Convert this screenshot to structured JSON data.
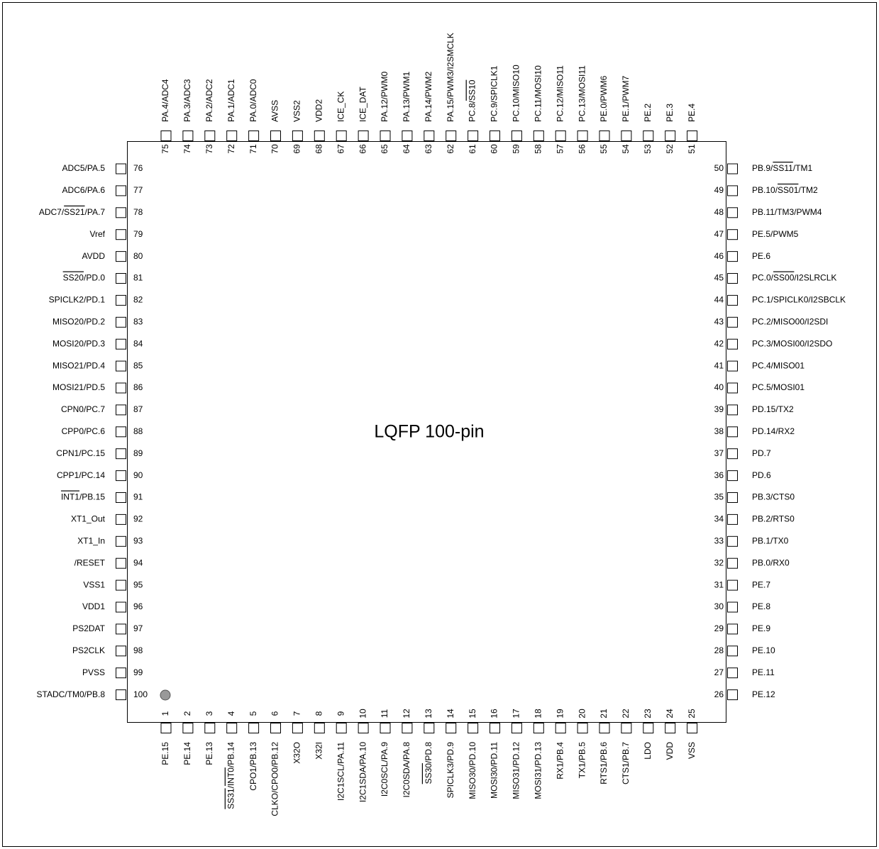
{
  "title": "LQFP 100-pin",
  "sides": {
    "top": [
      {
        "num": 75,
        "label": "PA.4/ADC4"
      },
      {
        "num": 74,
        "label": "PA.3/ADC3"
      },
      {
        "num": 73,
        "label": "PA.2/ADC2"
      },
      {
        "num": 72,
        "label": "PA.1/ADC1"
      },
      {
        "num": 71,
        "label": "PA.0/ADC0"
      },
      {
        "num": 70,
        "label": "AVSS"
      },
      {
        "num": 69,
        "label": "VSS2"
      },
      {
        "num": 68,
        "label": "VDD2"
      },
      {
        "num": 67,
        "label": "ICE_CK"
      },
      {
        "num": 66,
        "label": "ICE_DAT"
      },
      {
        "num": 65,
        "label": "PA.12/PWM0"
      },
      {
        "num": 64,
        "label": "PA.13/PWM1"
      },
      {
        "num": 63,
        "label": "PA.14/PWM2"
      },
      {
        "num": 62,
        "label": "PA.15/PWM3/I2SMCLK"
      },
      {
        "num": 61,
        "label": [
          "PC.8/",
          {
            "text": "SS10",
            "overline": true
          }
        ]
      },
      {
        "num": 60,
        "label": "PC.9/SPICLK1"
      },
      {
        "num": 59,
        "label": "PC.10/MISO10"
      },
      {
        "num": 58,
        "label": "PC.11/MOSI10"
      },
      {
        "num": 57,
        "label": "PC.12/MISO11"
      },
      {
        "num": 56,
        "label": "PC.13/MOSI11"
      },
      {
        "num": 55,
        "label": "PE.0/PWM6"
      },
      {
        "num": 54,
        "label": "PE.1/PWM7"
      },
      {
        "num": 53,
        "label": "PE.2"
      },
      {
        "num": 52,
        "label": "PE.3"
      },
      {
        "num": 51,
        "label": "PE.4"
      }
    ],
    "left": [
      {
        "num": 76,
        "label": "ADC5/PA.5"
      },
      {
        "num": 77,
        "label": "ADC6/PA.6"
      },
      {
        "num": 78,
        "label": [
          "ADC7/",
          {
            "text": "SS21",
            "overline": true
          },
          "/PA.7"
        ]
      },
      {
        "num": 79,
        "label": "Vref"
      },
      {
        "num": 80,
        "label": "AVDD"
      },
      {
        "num": 81,
        "label": [
          {
            "text": "SS20",
            "overline": true
          },
          "/PD.0"
        ]
      },
      {
        "num": 82,
        "label": "SPICLK2/PD.1"
      },
      {
        "num": 83,
        "label": "MISO20/PD.2"
      },
      {
        "num": 84,
        "label": "MOSI20/PD.3"
      },
      {
        "num": 85,
        "label": "MISO21/PD.4"
      },
      {
        "num": 86,
        "label": "MOSI21/PD.5"
      },
      {
        "num": 87,
        "label": "CPN0/PC.7"
      },
      {
        "num": 88,
        "label": "CPP0/PC.6"
      },
      {
        "num": 89,
        "label": "CPN1/PC.15"
      },
      {
        "num": 90,
        "label": "CPP1/PC.14"
      },
      {
        "num": 91,
        "label": [
          {
            "text": "INT1",
            "overline": true
          },
          "/PB.15"
        ]
      },
      {
        "num": 92,
        "label": "XT1_Out"
      },
      {
        "num": 93,
        "label": "XT1_In"
      },
      {
        "num": 94,
        "label": "/RESET"
      },
      {
        "num": 95,
        "label": "VSS1"
      },
      {
        "num": 96,
        "label": "VDD1"
      },
      {
        "num": 97,
        "label": "PS2DAT"
      },
      {
        "num": 98,
        "label": "PS2CLK"
      },
      {
        "num": 99,
        "label": "PVSS"
      },
      {
        "num": 100,
        "label": "STADC/TM0/PB.8"
      }
    ],
    "right": [
      {
        "num": 50,
        "label": [
          "PB.9/",
          {
            "text": "SS11",
            "overline": true
          },
          "/TM1"
        ]
      },
      {
        "num": 49,
        "label": [
          "PB.10/",
          {
            "text": "SS01",
            "overline": true
          },
          "/TM2"
        ]
      },
      {
        "num": 48,
        "label": "PB.11/TM3/PWM4"
      },
      {
        "num": 47,
        "label": "PE.5/PWM5"
      },
      {
        "num": 46,
        "label": "PE.6"
      },
      {
        "num": 45,
        "label": [
          "PC.0/",
          {
            "text": "SS00",
            "overline": true
          },
          "/I2SLRCLK"
        ]
      },
      {
        "num": 44,
        "label": "PC.1/SPICLK0/I2SBCLK"
      },
      {
        "num": 43,
        "label": "PC.2/MISO00/I2SDI"
      },
      {
        "num": 42,
        "label": "PC.3/MOSI00/I2SDO"
      },
      {
        "num": 41,
        "label": "PC.4/MISO01"
      },
      {
        "num": 40,
        "label": "PC.5/MOSI01"
      },
      {
        "num": 39,
        "label": "PD.15/TX2"
      },
      {
        "num": 38,
        "label": "PD.14/RX2"
      },
      {
        "num": 37,
        "label": "PD.7"
      },
      {
        "num": 36,
        "label": "PD.6"
      },
      {
        "num": 35,
        "label": "PB.3/CTS0"
      },
      {
        "num": 34,
        "label": "PB.2/RTS0"
      },
      {
        "num": 33,
        "label": "PB.1/TX0"
      },
      {
        "num": 32,
        "label": "PB.0/RX0"
      },
      {
        "num": 31,
        "label": "PE.7"
      },
      {
        "num": 30,
        "label": "PE.8"
      },
      {
        "num": 29,
        "label": "PE.9"
      },
      {
        "num": 28,
        "label": "PE.10"
      },
      {
        "num": 27,
        "label": "PE.11"
      },
      {
        "num": 26,
        "label": "PE.12"
      }
    ],
    "bottom": [
      {
        "num": 1,
        "label": "PE.15"
      },
      {
        "num": 2,
        "label": "PE.14"
      },
      {
        "num": 3,
        "label": "PE.13"
      },
      {
        "num": 4,
        "label": [
          {
            "text": "SS31",
            "overline": true
          },
          "/",
          {
            "text": "INT0",
            "overline": true
          },
          "/PB.14"
        ]
      },
      {
        "num": 5,
        "label": "CPO1/PB.13"
      },
      {
        "num": 6,
        "label": "CLKO/CPO0/PB.12"
      },
      {
        "num": 7,
        "label": "X32O"
      },
      {
        "num": 8,
        "label": "X32I"
      },
      {
        "num": 9,
        "label": "I2C1SCL/PA.11"
      },
      {
        "num": 10,
        "label": "I2C1SDA/PA.10"
      },
      {
        "num": 11,
        "label": "I2C0SCL/PA.9"
      },
      {
        "num": 12,
        "label": "I2C0SDA/PA.8"
      },
      {
        "num": 13,
        "label": [
          {
            "text": "SS30",
            "overline": true
          },
          "/PD.8"
        ]
      },
      {
        "num": 14,
        "label": "SPICLK3/PD.9"
      },
      {
        "num": 15,
        "label": "MISO30/PD.10"
      },
      {
        "num": 16,
        "label": "MOSI30/PD.11"
      },
      {
        "num": 17,
        "label": "MISO31/PD.12"
      },
      {
        "num": 18,
        "label": "MOSI31/PD.13"
      },
      {
        "num": 19,
        "label": "RX1/PB.4"
      },
      {
        "num": 20,
        "label": "TX1/PB.5"
      },
      {
        "num": 21,
        "label": "RTS1/PB.6"
      },
      {
        "num": 22,
        "label": "CTS1/PB.7"
      },
      {
        "num": 23,
        "label": "LDO"
      },
      {
        "num": 24,
        "label": "VDD"
      },
      {
        "num": 25,
        "label": "VSS"
      }
    ]
  }
}
